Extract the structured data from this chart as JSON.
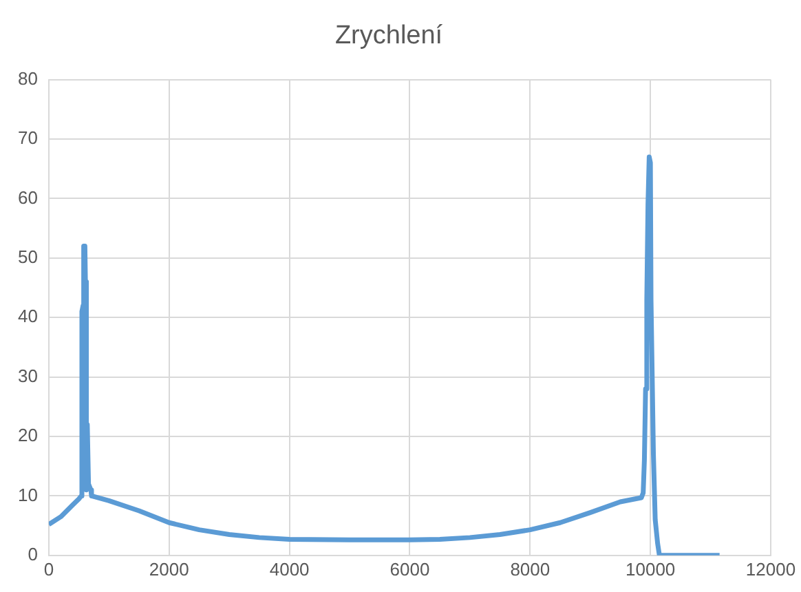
{
  "chart_data": {
    "type": "line",
    "title": "Zrychlení",
    "x": [
      0,
      200,
      400,
      500,
      540,
      550,
      570,
      580,
      600,
      610,
      620,
      630,
      640,
      650,
      660,
      700,
      710,
      1000,
      1500,
      2000,
      2500,
      3000,
      3500,
      4000,
      5000,
      6000,
      6500,
      7000,
      7500,
      8000,
      8500,
      9000,
      9500,
      9850,
      9880,
      9900,
      9920,
      9940,
      9960,
      9980,
      10000,
      10010,
      10030,
      10050,
      10080,
      10120,
      10150,
      11150
    ],
    "series": [
      {
        "color": "#5b9bd5",
        "values": [
          5.2,
          6.5,
          8.5,
          9.5,
          10,
          41,
          42,
          52,
          52,
          45,
          46,
          11,
          22,
          22,
          12,
          11,
          10,
          9.2,
          7.5,
          5.5,
          4.3,
          3.5,
          3,
          2.7,
          2.6,
          2.6,
          2.7,
          3,
          3.5,
          4.3,
          5.5,
          7.2,
          9,
          9.7,
          10.5,
          16,
          28,
          43,
          59,
          67,
          66,
          43,
          43,
          17,
          6,
          2,
          0,
          0
        ]
      }
    ],
    "xlim": [
      0,
      12000
    ],
    "xticks": [
      0,
      2000,
      4000,
      6000,
      8000,
      10000,
      12000
    ],
    "ylim": [
      0,
      80
    ],
    "yticks": [
      0,
      10,
      20,
      30,
      40,
      50,
      60,
      70,
      80
    ],
    "grid": true,
    "legend": false,
    "marker": "none",
    "line_style": "solid"
  }
}
